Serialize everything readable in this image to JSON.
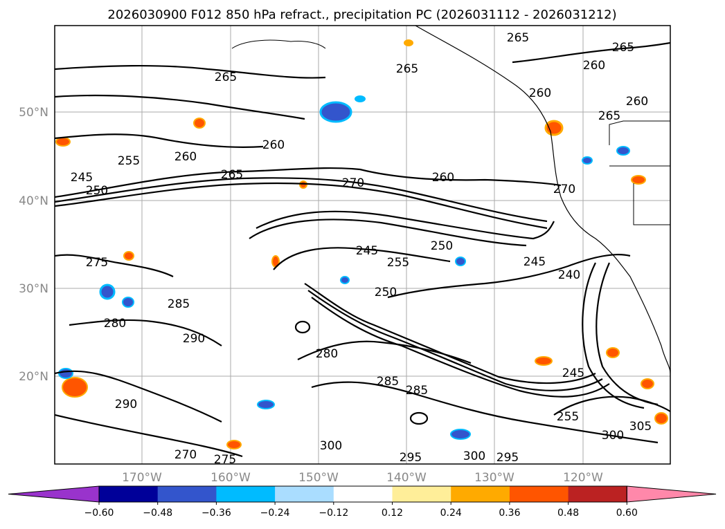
{
  "title": "2026030900 F012 850 hPa refract., precipitation PC (2026031112 - 2026031212)",
  "map": {
    "lat_ticks": [
      "50°N",
      "40°N",
      "30°N",
      "20°N"
    ],
    "lon_ticks": [
      "170°W",
      "160°W",
      "150°W",
      "140°W",
      "130°W",
      "120°W"
    ],
    "contour_labels": [
      "265",
      "265",
      "265",
      "260",
      "255",
      "260",
      "265",
      "245",
      "250",
      "270",
      "260",
      "250",
      "245",
      "255",
      "275",
      "280",
      "285",
      "290",
      "280",
      "285",
      "285",
      "290",
      "300",
      "295",
      "300",
      "295",
      "270",
      "275",
      "245",
      "240",
      "245",
      "250",
      "255",
      "305",
      "300",
      "260",
      "265",
      "260",
      "265",
      "260",
      "270"
    ]
  },
  "colorbar": {
    "colors": [
      "#9933cc",
      "#000099",
      "#3355cc",
      "#00bbff",
      "#aaddff",
      "#ffffff",
      "#ffee99",
      "#ffaa00",
      "#ff5500",
      "#bb2222",
      "#ff88aa"
    ],
    "labels": [
      "−0.60",
      "−0.48",
      "−0.36",
      "−0.24",
      "−0.12",
      "0.12",
      "0.24",
      "0.36",
      "0.48",
      "0.60"
    ]
  }
}
